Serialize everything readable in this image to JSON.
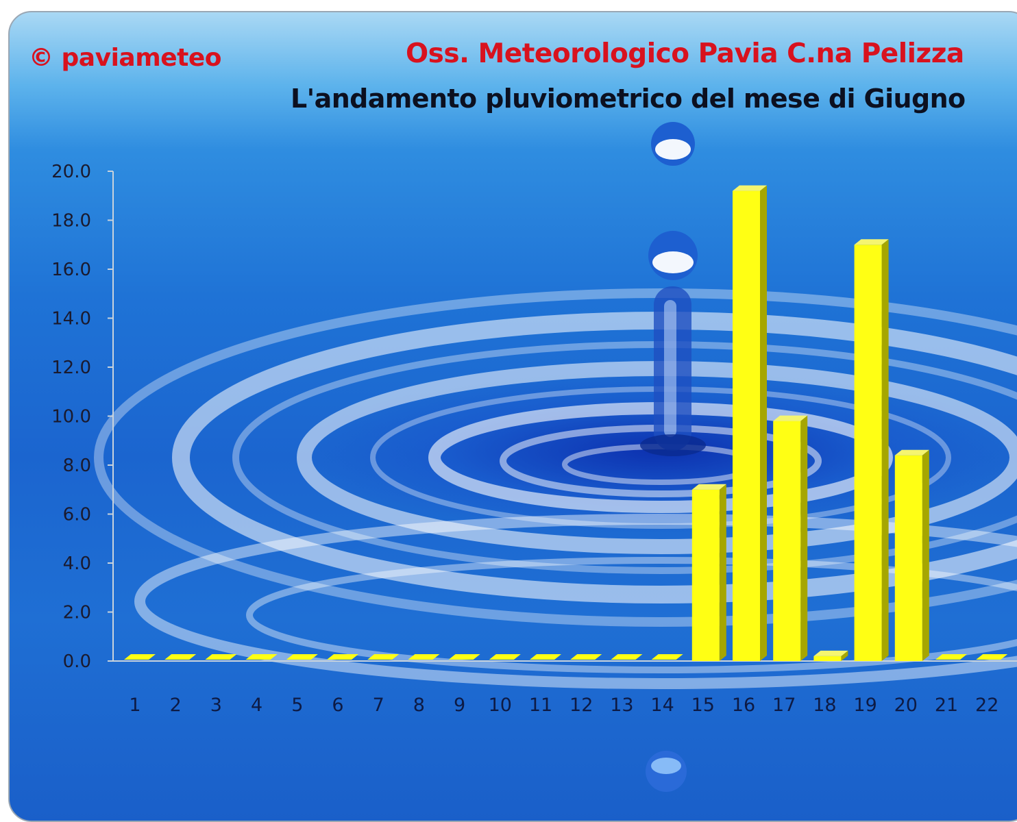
{
  "header": {
    "credit": "© paviameteo",
    "title": "Oss. Meteorologico Pavia C.na Pelizza",
    "subtitle": "L'andamento pluviometrico del mese di Giugno"
  },
  "colors": {
    "bar_front": "#ffff14",
    "bar_side": "#a6a600",
    "bar_top": "#f5f570",
    "axis": "#c9d3dc"
  },
  "chart_data": {
    "type": "bar",
    "title": "L'andamento pluviometrico del mese di Giugno",
    "xlabel": "",
    "ylabel": "",
    "categories": [
      "1",
      "2",
      "3",
      "4",
      "5",
      "6",
      "7",
      "8",
      "9",
      "10",
      "11",
      "12",
      "13",
      "14",
      "15",
      "16",
      "17",
      "18",
      "19",
      "20",
      "21",
      "22"
    ],
    "values": [
      0,
      0,
      0,
      0,
      0,
      0,
      0,
      0,
      0,
      0,
      0,
      0,
      0,
      0,
      7.0,
      19.2,
      9.8,
      0.2,
      17.0,
      8.4,
      0,
      0
    ],
    "y_ticks": [
      "0.0",
      "2.0",
      "4.0",
      "6.0",
      "8.0",
      "10.0",
      "12.0",
      "14.0",
      "16.0",
      "18.0",
      "20.0"
    ],
    "ylim": [
      0,
      20
    ],
    "grid": false,
    "legend": "none",
    "style": "3d-bar"
  }
}
